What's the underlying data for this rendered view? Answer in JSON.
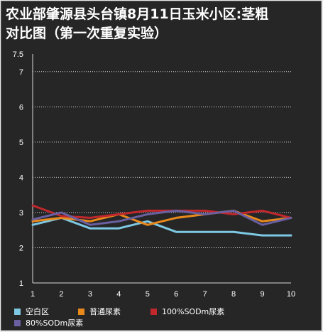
{
  "chart_data": {
    "type": "line",
    "title_lines": [
      "农业部肇源县头台镇8月11日玉米小区:茎粗",
      "对比图（第一次重复实验）"
    ],
    "x": [
      1,
      2,
      3,
      4,
      5,
      6,
      7,
      8,
      9,
      10
    ],
    "y_ticks": [
      "1",
      "2",
      "3",
      "4",
      "5",
      "6",
      "7",
      "7.5"
    ],
    "x_ticks": [
      "1",
      "2",
      "3",
      "4",
      "5",
      "6",
      "7",
      "8",
      "9",
      "10"
    ],
    "ylim": [
      1,
      7.5
    ],
    "grid": true,
    "legend_position": "bottom",
    "series": [
      {
        "name": "空白区",
        "color": "#7ec8e3",
        "values": [
          2.65,
          2.85,
          2.55,
          2.55,
          2.75,
          2.45,
          2.45,
          2.45,
          2.35,
          2.35
        ]
      },
      {
        "name": "普通尿素",
        "color": "#e8891c",
        "values": [
          2.75,
          2.85,
          2.75,
          2.95,
          2.65,
          2.85,
          2.95,
          3.05,
          2.75,
          2.85
        ]
      },
      {
        "name": "100%SODm尿素",
        "color": "#c0282d",
        "values": [
          3.2,
          2.9,
          2.85,
          2.95,
          3.05,
          3.05,
          3.05,
          2.95,
          3.05,
          2.85
        ]
      },
      {
        "name": "80%SODm尿素",
        "color": "#6a5fa0",
        "values": [
          2.8,
          3.0,
          2.65,
          2.75,
          2.95,
          3.05,
          2.95,
          3.05,
          2.65,
          2.85
        ]
      }
    ]
  }
}
